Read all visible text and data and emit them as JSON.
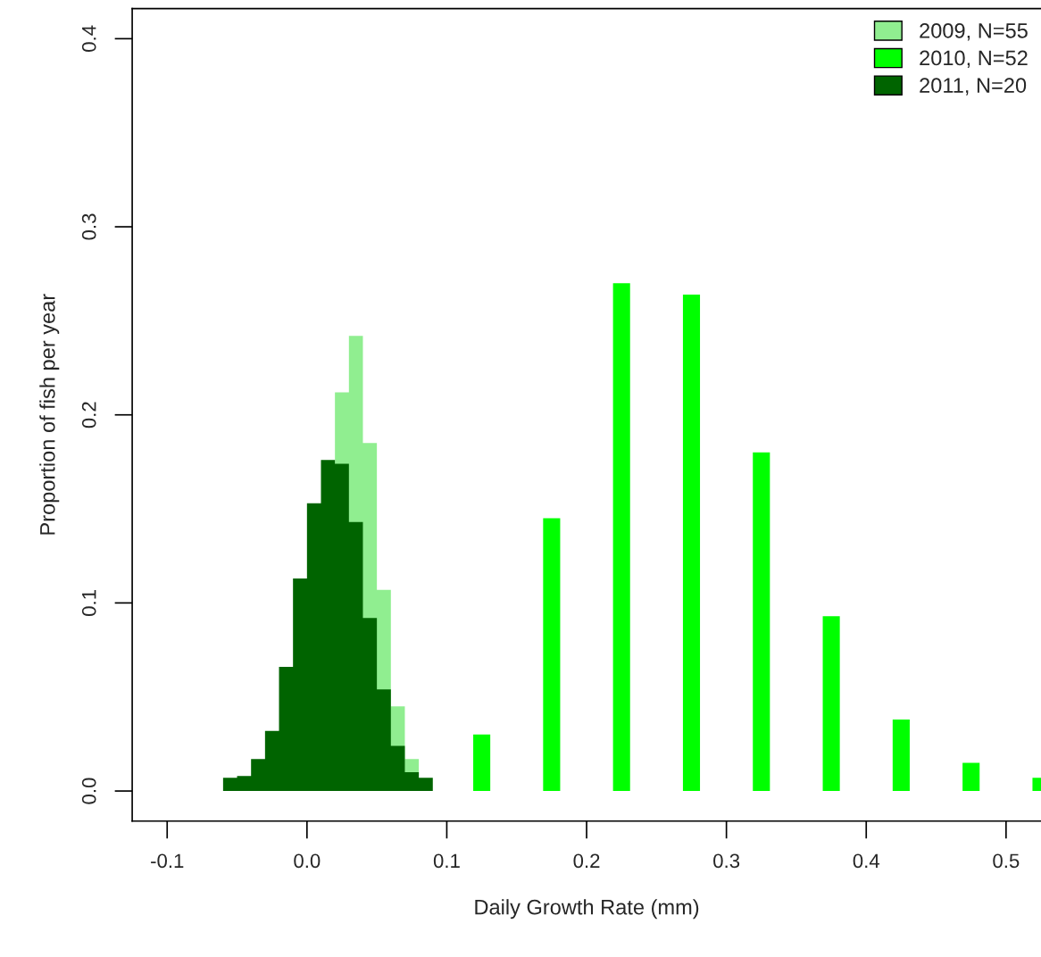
{
  "chart_data": {
    "type": "histogram",
    "xlabel": "Daily Growth Rate (mm)",
    "ylabel": "Proportion of fish per year",
    "series": [
      {
        "name": "2009, N=55",
        "color": "#90ee90",
        "bins": [
          0.02,
          0.03,
          0.04,
          0.05,
          0.06,
          0.07,
          0.08
        ],
        "values": [
          0.212,
          0.242,
          0.185,
          0.107,
          0.045,
          0.017
        ]
      },
      {
        "name": "2010, N=52",
        "color": "#00ff00",
        "type": "bar",
        "x": [
          0.125,
          0.175,
          0.225,
          0.275,
          0.325,
          0.375,
          0.425,
          0.475,
          0.525
        ],
        "values": [
          0.03,
          0.145,
          0.27,
          0.264,
          0.18,
          0.093,
          0.038,
          0.015,
          0.007
        ]
      },
      {
        "name": "2011, N=20",
        "color": "#006400",
        "bins": [
          -0.06,
          -0.05,
          -0.04,
          -0.03,
          -0.02,
          -0.01,
          0.0,
          0.01,
          0.02,
          0.03,
          0.04,
          0.05,
          0.06,
          0.07,
          0.08,
          0.09
        ],
        "values": [
          0.007,
          0.008,
          0.017,
          0.032,
          0.066,
          0.113,
          0.153,
          0.176,
          0.174,
          0.143,
          0.092,
          0.054,
          0.024,
          0.01,
          0.007
        ]
      }
    ],
    "xlim": [
      -0.125,
      0.525
    ],
    "ylim": [
      -0.016,
      0.416
    ],
    "xticks": [
      -0.1,
      {
        "value": 0,
        "label": "0.0"
      },
      0.1,
      0.2,
      0.3,
      0.4,
      0.5
    ],
    "yticks": [
      {
        "value": 0,
        "label": "0.0"
      },
      0.1,
      0.2,
      0.3,
      0.4
    ],
    "legend": "top right"
  }
}
